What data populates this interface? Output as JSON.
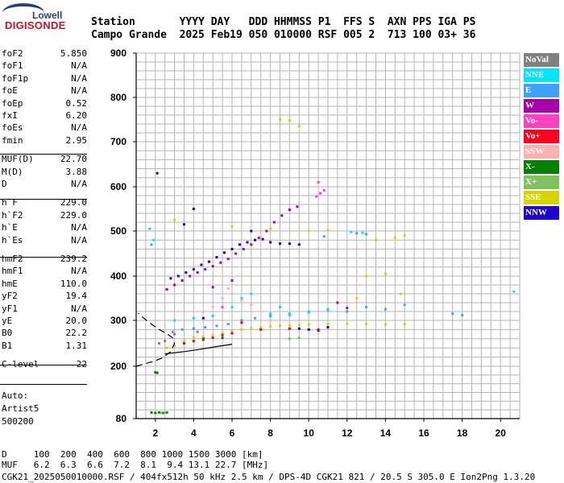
{
  "logo": {
    "top": "Lowell",
    "main": "DIGISONDE"
  },
  "header": {
    "row1": "Station       YYYY DAY   DDD HHMMSS P1  FFS S  AXN PPS IGA PS",
    "row2": "Campo Grande  2025 Feb19 050 010000 RSF 005 2  713 100 03+ 36"
  },
  "params": [
    {
      "label": "foF2",
      "value": "5.850"
    },
    {
      "label": "foF1",
      "value": "N/A"
    },
    {
      "label": "foF1p",
      "value": "N/A"
    },
    {
      "label": "foE",
      "value": "N/A"
    },
    {
      "label": "foEp",
      "value": "0.52"
    },
    {
      "label": "fxI",
      "value": "6.20"
    },
    {
      "label": "foEs",
      "value": "N/A"
    },
    {
      "label": "fmin",
      "value": "2.95"
    },
    {
      "label": "MUF(D)",
      "value": "22.70"
    },
    {
      "label": "M(D)",
      "value": "3.88"
    },
    {
      "label": "D",
      "value": "N/A"
    },
    {
      "label": "h`F",
      "value": "229.0"
    },
    {
      "label": "h`F2",
      "value": "229.0"
    },
    {
      "label": "h`E",
      "value": "N/A"
    },
    {
      "label": "h`Es",
      "value": "N/A"
    },
    {
      "label": "hmF2",
      "value": "239.2"
    },
    {
      "label": "hmF1",
      "value": "N/A"
    },
    {
      "label": "hmE",
      "value": "110.0"
    },
    {
      "label": "yF2",
      "value": "19.4"
    },
    {
      "label": "yF1",
      "value": "N/A"
    },
    {
      "label": "yE",
      "value": "20.0"
    },
    {
      "label": "B0",
      "value": "22.2"
    },
    {
      "label": "B1",
      "value": "1.31"
    },
    {
      "label": "C-level",
      "value": "22"
    }
  ],
  "auto": {
    "line1": "Auto:",
    "line2": "Artist5",
    "line3": "500200"
  },
  "legend": [
    {
      "label": "NoVal",
      "color": "#808080"
    },
    {
      "label": "NNE",
      "color": "#00e5ff"
    },
    {
      "label": "E",
      "color": "#3ea0ff"
    },
    {
      "label": "W",
      "color": "#a800a8"
    },
    {
      "label": "Vo-",
      "color": "#ff40c0"
    },
    {
      "label": "Vo+",
      "color": "#ff0020"
    },
    {
      "label": "SSW",
      "color": "#ffb0b0"
    },
    {
      "label": "X-",
      "color": "#008000"
    },
    {
      "label": "X+",
      "color": "#80c060"
    },
    {
      "label": "SSE",
      "color": "#d4d400"
    },
    {
      "label": "NNW",
      "color": "#2000d0"
    }
  ],
  "footer": {
    "line1": "D     100  200  400  600  800 1000 1500 3000 [km]",
    "line2": "MUF   6.2  6.3  6.6  7.2  8.1  9.4 13.1 22.7 [MHz]",
    "line3": "CGK21_2025050010000.RSF / 404fx512h 50 kHz 2.5 km / DPS-4D CGK21 821 / 20.5 S 305.0 E Ion2Png 1.3.20"
  },
  "chart_data": {
    "type": "scatter",
    "xlabel": "",
    "ylabel": "",
    "xlim": [
      1.0,
      21.0
    ],
    "ylim": [
      80,
      900
    ],
    "xticks": [
      2,
      4,
      6,
      8,
      10,
      12,
      14,
      16,
      18,
      20
    ],
    "yticks": [
      80,
      200,
      300,
      400,
      500,
      600,
      700,
      800,
      900
    ],
    "grid": true,
    "series": [
      {
        "name": "SSE",
        "color": "#d4d400",
        "points": [
          [
            2.6,
            240
          ],
          [
            3.0,
            245
          ],
          [
            3.5,
            255
          ],
          [
            4.0,
            262
          ],
          [
            4.5,
            265
          ],
          [
            5.0,
            268
          ],
          [
            5.5,
            272
          ],
          [
            6.0,
            276
          ],
          [
            6.5,
            280
          ],
          [
            7.0,
            283
          ],
          [
            7.5,
            285
          ],
          [
            8.0,
            287
          ],
          [
            8.5,
            288
          ],
          [
            9.0,
            289
          ],
          [
            9.5,
            290
          ],
          [
            10.0,
            291
          ],
          [
            11.0,
            292
          ],
          [
            12.0,
            293
          ],
          [
            13.0,
            292
          ],
          [
            14.0,
            291
          ],
          [
            15.0,
            292
          ],
          [
            13.5,
            480
          ],
          [
            14.5,
            485
          ],
          [
            15.0,
            490
          ],
          [
            13.0,
            400
          ],
          [
            14.0,
            405
          ],
          [
            12.5,
            350
          ],
          [
            14.8,
            360
          ],
          [
            8.5,
            750
          ],
          [
            9.0,
            748
          ],
          [
            9.5,
            735
          ],
          [
            10.0,
            500
          ],
          [
            11.0,
            502
          ],
          [
            6.0,
            510
          ],
          [
            8.0,
            505
          ],
          [
            3.0,
            525
          ]
        ]
      },
      {
        "name": "NNW",
        "color": "#2000d0",
        "points": [
          [
            2.8,
            395
          ],
          [
            3.2,
            400
          ],
          [
            3.6,
            408
          ],
          [
            4.0,
            415
          ],
          [
            4.4,
            425
          ],
          [
            4.8,
            432
          ],
          [
            5.2,
            442
          ],
          [
            5.6,
            452
          ],
          [
            6.0,
            460
          ],
          [
            6.4,
            470
          ],
          [
            6.8,
            475
          ],
          [
            7.2,
            480
          ],
          [
            7.6,
            482
          ],
          [
            8.0,
            475
          ],
          [
            8.5,
            472
          ],
          [
            9.0,
            472
          ],
          [
            9.5,
            470
          ],
          [
            3.5,
            515
          ],
          [
            4.0,
            550
          ],
          [
            9.5,
            282
          ],
          [
            10.0,
            280
          ],
          [
            10.5,
            278
          ],
          [
            11.0,
            285
          ],
          [
            7.0,
            500
          ],
          [
            2.1,
            630
          ],
          [
            4.5,
            305
          ]
        ]
      },
      {
        "name": "W",
        "color": "#a800a8",
        "points": [
          [
            2.6,
            370
          ],
          [
            3.0,
            380
          ],
          [
            3.4,
            390
          ],
          [
            3.8,
            400
          ],
          [
            4.2,
            408
          ],
          [
            4.6,
            415
          ],
          [
            5.0,
            422
          ],
          [
            5.4,
            430
          ],
          [
            5.8,
            438
          ],
          [
            6.2,
            450
          ],
          [
            6.6,
            460
          ],
          [
            7.0,
            470
          ],
          [
            7.4,
            485
          ],
          [
            7.8,
            500
          ],
          [
            8.2,
            520
          ],
          [
            8.6,
            535
          ],
          [
            9.0,
            548
          ],
          [
            9.4,
            555
          ],
          [
            5.0,
            375
          ],
          [
            6.0,
            390
          ],
          [
            11.5,
            340
          ],
          [
            12.0,
            328
          ]
        ]
      },
      {
        "name": "E",
        "color": "#3ea0ff",
        "points": [
          [
            2.9,
            275
          ],
          [
            3.4,
            280
          ],
          [
            4.0,
            282
          ],
          [
            4.6,
            285
          ],
          [
            5.2,
            288
          ],
          [
            5.8,
            292
          ],
          [
            6.5,
            300
          ],
          [
            7.2,
            305
          ],
          [
            8.0,
            310
          ],
          [
            9.0,
            315
          ],
          [
            10.0,
            320
          ],
          [
            11.0,
            325
          ],
          [
            12.0,
            320
          ],
          [
            13.0,
            330
          ],
          [
            14.0,
            325
          ],
          [
            15.0,
            335
          ],
          [
            17.5,
            315
          ],
          [
            18.0,
            312
          ],
          [
            12.5,
            495
          ],
          [
            13.0,
            493
          ],
          [
            10.8,
            488
          ],
          [
            1.8,
            470
          ]
        ]
      },
      {
        "name": "NNE",
        "color": "#00e5ff",
        "points": [
          [
            3.0,
            300
          ],
          [
            4.0,
            305
          ],
          [
            5.0,
            310
          ],
          [
            6.0,
            330
          ],
          [
            6.5,
            350
          ],
          [
            7.0,
            360
          ],
          [
            8.0,
            315
          ],
          [
            9.0,
            312
          ],
          [
            10.0,
            318
          ],
          [
            11.0,
            322
          ],
          [
            12.2,
            498
          ],
          [
            12.8,
            496
          ],
          [
            20.7,
            365
          ],
          [
            1.7,
            505
          ],
          [
            1.9,
            480
          ],
          [
            8.5,
            330
          ]
        ]
      },
      {
        "name": "Vo+",
        "color": "#ff0020",
        "points": [
          [
            3.5,
            250
          ],
          [
            4.0,
            255
          ],
          [
            4.5,
            260
          ],
          [
            5.0,
            262
          ],
          [
            5.5,
            268
          ],
          [
            6.0,
            272
          ],
          [
            7.5,
            280
          ],
          [
            9.0,
            282
          ],
          [
            10.5,
            280
          ],
          [
            6.5,
            295
          ]
        ]
      },
      {
        "name": "Vo-",
        "color": "#ff40c0",
        "points": [
          [
            10.4,
            578
          ],
          [
            10.6,
            585
          ],
          [
            10.8,
            592
          ],
          [
            10.5,
            610
          ],
          [
            5.5,
            330
          ]
        ]
      },
      {
        "name": "SSW",
        "color": "#ffb0b0",
        "points": [
          [
            4.5,
            320
          ],
          [
            5.0,
            330
          ],
          [
            5.5,
            350
          ],
          [
            6.0,
            360
          ],
          [
            6.5,
            345
          ],
          [
            7.0,
            335
          ],
          [
            8.0,
            300
          ],
          [
            5.8,
            372
          ]
        ]
      },
      {
        "name": "X-",
        "color": "#008000",
        "points": [
          [
            1.8,
            94
          ],
          [
            2.0,
            93
          ],
          [
            2.2,
            94
          ],
          [
            2.4,
            93
          ],
          [
            2.6,
            94
          ],
          [
            2.1,
            185
          ],
          [
            2.0,
            186
          ],
          [
            4.5,
            258
          ],
          [
            5.5,
            262
          ]
        ]
      },
      {
        "name": "X+",
        "color": "#80c060",
        "points": [
          [
            2.3,
            93
          ],
          [
            2.5,
            94
          ],
          [
            9.0,
            260
          ],
          [
            9.5,
            262
          ]
        ]
      },
      {
        "name": "NoVal",
        "color": "#808080",
        "points": [
          [
            2.2,
            250
          ],
          [
            2.5,
            255
          ],
          [
            3.0,
            270
          ],
          [
            4.2,
            275
          ]
        ]
      }
    ],
    "curves": [
      {
        "name": "profile-dashed",
        "color": "#000000",
        "style": "dashed",
        "points": [
          [
            1.0,
            200
          ],
          [
            1.5,
            206
          ],
          [
            2.0,
            212
          ],
          [
            2.4,
            219
          ],
          [
            2.8,
            232
          ],
          [
            3.0,
            250
          ],
          [
            2.9,
            262
          ],
          [
            2.6,
            271
          ],
          [
            2.2,
            280
          ],
          [
            1.8,
            292
          ],
          [
            1.4,
            305
          ],
          [
            1.1,
            316
          ]
        ]
      },
      {
        "name": "trace-fit",
        "color": "#000000",
        "style": "solid",
        "points": [
          [
            2.5,
            227
          ],
          [
            3.5,
            232
          ],
          [
            4.5,
            238
          ],
          [
            5.2,
            243
          ],
          [
            6.0,
            248
          ]
        ]
      }
    ]
  }
}
